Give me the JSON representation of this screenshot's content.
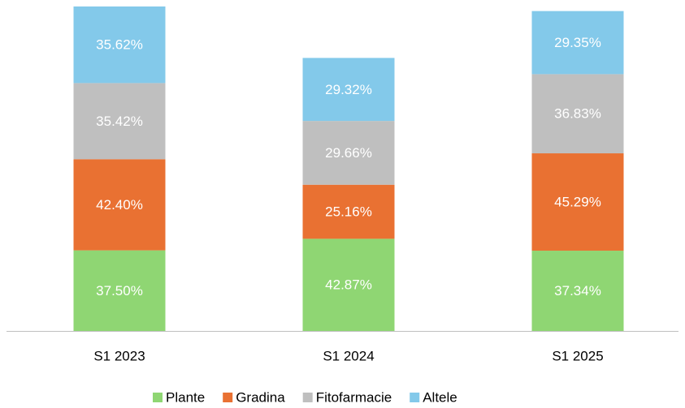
{
  "chart_data": {
    "type": "stacked_bar",
    "categories": [
      "S1 2023",
      "S1 2024",
      "S1 2025"
    ],
    "series": [
      {
        "name": "Plante",
        "color": "#8fd673",
        "values": [
          37.5,
          42.87,
          37.34
        ],
        "value_labels": [
          "37.50%",
          "42.87%",
          "37.34%"
        ]
      },
      {
        "name": "Gradina",
        "color": "#e97132",
        "values": [
          42.4,
          25.16,
          45.29
        ],
        "value_labels": [
          "42.40%",
          "25.16%",
          "45.29%"
        ]
      },
      {
        "name": "Fitofarmacie",
        "color": "#bfbfbf",
        "values": [
          35.42,
          29.66,
          36.83
        ],
        "value_labels": [
          "35.42%",
          "29.66%",
          "36.83%"
        ]
      },
      {
        "name": "Altele",
        "color": "#83c9ea",
        "values": [
          35.62,
          29.32,
          29.35
        ],
        "value_labels": [
          "35.62%",
          "29.32%",
          "29.35%"
        ]
      }
    ],
    "legend": "bottom"
  }
}
